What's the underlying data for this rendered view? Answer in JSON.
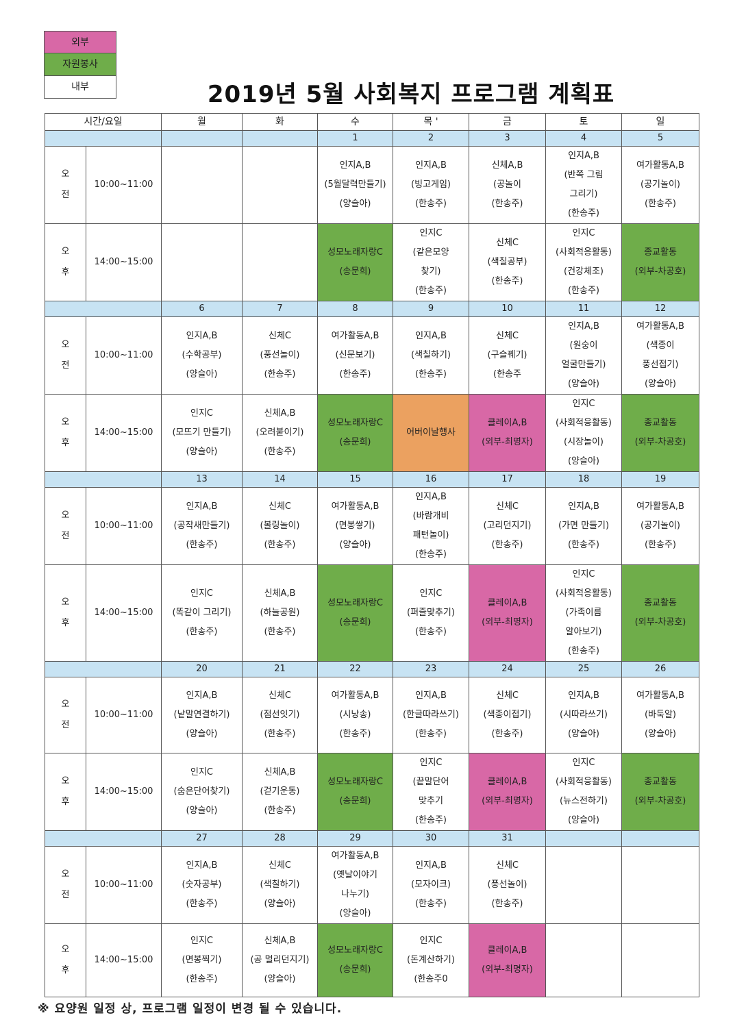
{
  "legend": [
    {
      "label": "외부",
      "color": "#d868a6"
    },
    {
      "label": "자원봉사",
      "color": "#6fad4a"
    },
    {
      "label": "내부",
      "color": "#ffffff"
    }
  ],
  "title": "2019년 5월 사회복지 프로그램 계획표",
  "header": [
    "시간/요일",
    "월",
    "화",
    "수",
    "목 '",
    "금",
    "토",
    "일"
  ],
  "ampm": {
    "am": [
      "오",
      "전"
    ],
    "pm": [
      "오",
      "후"
    ]
  },
  "times": {
    "am": "10:00~11:00",
    "pm": "14:00~15:00"
  },
  "colors": {
    "ext": "#d868a6",
    "vol": "#6fad4a",
    "spec": "#eba160",
    "date": "#c7e3f3"
  },
  "weeks": [
    {
      "dates": [
        "",
        "",
        "1",
        "2",
        "3",
        "4",
        "5"
      ],
      "am": [
        {
          "lines": [],
          "type": "int"
        },
        {
          "lines": [],
          "type": "int"
        },
        {
          "lines": [
            "인지A,B",
            "(5월달력만들기)",
            "(양슬아)"
          ],
          "type": "int"
        },
        {
          "lines": [
            "인지A,B",
            "(빙고게임)",
            "(한송주)"
          ],
          "type": "int"
        },
        {
          "lines": [
            "신체A,B",
            "(공놀이",
            "(한송주)"
          ],
          "type": "int"
        },
        {
          "lines": [
            "인지A,B",
            "(반쪽 그림",
            "그리기)",
            "(한송주)"
          ],
          "type": "int"
        },
        {
          "lines": [
            "여가활동A,B",
            "(공기놀이)",
            "(한송주)"
          ],
          "type": "int"
        }
      ],
      "pm": [
        {
          "lines": [],
          "type": "int"
        },
        {
          "lines": [],
          "type": "int"
        },
        {
          "lines": [
            "성모노래자랑C",
            "(송문희)"
          ],
          "type": "vol"
        },
        {
          "lines": [
            "인지C",
            "(같은모양",
            "찾기)",
            "(한송주)"
          ],
          "type": "int"
        },
        {
          "lines": [
            "신체C",
            "(색칠공부)",
            "(한송주)"
          ],
          "type": "int"
        },
        {
          "lines": [
            "인지C",
            "(사회적응활동)",
            "(건강체조)",
            "(한송주)"
          ],
          "type": "int"
        },
        {
          "lines": [
            "종교활동",
            "(외부-차공호)"
          ],
          "type": "vol"
        }
      ]
    },
    {
      "dates": [
        "6",
        "7",
        "8",
        "9",
        "10",
        "11",
        "12"
      ],
      "am": [
        {
          "lines": [
            "인지A,B",
            "(수학공부)",
            "(양슬아)"
          ],
          "type": "int"
        },
        {
          "lines": [
            "신체C",
            "(풍선놀이)",
            "(한송주)"
          ],
          "type": "int"
        },
        {
          "lines": [
            "여가활동A,B",
            "(신문보기)",
            "(한송주)"
          ],
          "type": "int"
        },
        {
          "lines": [
            "인지A,B",
            "(색칠하기)",
            "(한송주)"
          ],
          "type": "int"
        },
        {
          "lines": [
            "신체C",
            "(구슬꿰기)",
            "(한송주"
          ],
          "type": "int"
        },
        {
          "lines": [
            "인지A,B",
            "(원숭이",
            "얼굴만들기)",
            "(양슬아)"
          ],
          "type": "int"
        },
        {
          "lines": [
            "여가활동A,B",
            "(색종이",
            "풍선접기)",
            "(양슬아)"
          ],
          "type": "int"
        }
      ],
      "pm": [
        {
          "lines": [
            "인지C",
            "(모뜨기 만들기)",
            "(양슬아)"
          ],
          "type": "int"
        },
        {
          "lines": [
            "신체A,B",
            "(오려붙이기)",
            "(한송주)"
          ],
          "type": "int"
        },
        {
          "lines": [
            "성모노래자랑C",
            "(송문희)"
          ],
          "type": "vol"
        },
        {
          "lines": [
            "어버이날행사"
          ],
          "type": "spec"
        },
        {
          "lines": [
            "클레이A,B",
            "(외부-최명자)"
          ],
          "type": "ext"
        },
        {
          "lines": [
            "인지C",
            "(사회적응활동)",
            "(시장놀이)",
            "(양슬아)"
          ],
          "type": "int"
        },
        {
          "lines": [
            "종교활동",
            "(외부-차공호)"
          ],
          "type": "vol"
        }
      ]
    },
    {
      "dates": [
        "13",
        "14",
        "15",
        "16",
        "17",
        "18",
        "19"
      ],
      "am": [
        {
          "lines": [
            "인지A,B",
            "(공작새만들기)",
            "(한송주)"
          ],
          "type": "int"
        },
        {
          "lines": [
            "신체C",
            "(볼링놀이)",
            "(한송주)"
          ],
          "type": "int"
        },
        {
          "lines": [
            "여가활동A,B",
            "(면봉쌓기)",
            "(양슬아)"
          ],
          "type": "int"
        },
        {
          "lines": [
            "인지A,B",
            "(바람개비",
            "패턴놀이)",
            "(한송주)"
          ],
          "type": "int"
        },
        {
          "lines": [
            "신체C",
            "(고리던지기)",
            "(한송주)"
          ],
          "type": "int"
        },
        {
          "lines": [
            "인지A,B",
            "(가면 만들기)",
            "(한송주)"
          ],
          "type": "int"
        },
        {
          "lines": [
            "여가활동A,B",
            "(공기놀이)",
            "(한송주)"
          ],
          "type": "int"
        }
      ],
      "pm": [
        {
          "lines": [
            "인지C",
            "(똑같이 그리기)",
            "(한송주)"
          ],
          "type": "int"
        },
        {
          "lines": [
            "신체A,B",
            "(하늘공원)",
            "(한송주)"
          ],
          "type": "int"
        },
        {
          "lines": [
            "성모노래자랑C",
            "(송문희)"
          ],
          "type": "vol"
        },
        {
          "lines": [
            "인지C",
            "(퍼즐맞추기)",
            "(한송주)"
          ],
          "type": "int"
        },
        {
          "lines": [
            "클레이A,B",
            "(외부-최명자)"
          ],
          "type": "ext"
        },
        {
          "lines": [
            "인지C",
            "(사회적응활동)",
            "(가족이름",
            "알아보기)",
            "(한송주)"
          ],
          "type": "int"
        },
        {
          "lines": [
            "종교활동",
            "(외부-차공호)"
          ],
          "type": "vol"
        }
      ]
    },
    {
      "dates": [
        "20",
        "21",
        "22",
        "23",
        "24",
        "25",
        "26"
      ],
      "am": [
        {
          "lines": [
            "인지A,B",
            "(낱말연결하기)",
            "(양슬아)"
          ],
          "type": "int"
        },
        {
          "lines": [
            "신체C",
            "(점선잇기)",
            "(한송주)"
          ],
          "type": "int"
        },
        {
          "lines": [
            "여가활동A,B",
            "(시낭송)",
            "(한송주)"
          ],
          "type": "int"
        },
        {
          "lines": [
            "인지A,B",
            "(한글따라쓰기)",
            "(한송주)"
          ],
          "type": "int"
        },
        {
          "lines": [
            "신체C",
            "(색종이접기)",
            "(한송주)"
          ],
          "type": "int"
        },
        {
          "lines": [
            "인지A,B",
            "(시따라쓰기)",
            "(양슬아)"
          ],
          "type": "int"
        },
        {
          "lines": [
            "여가활동A,B",
            "(바둑알)",
            "(양슬아)"
          ],
          "type": "int"
        }
      ],
      "pm": [
        {
          "lines": [
            "인지C",
            "(숨은단어찾기)",
            "(양슬아)"
          ],
          "type": "int"
        },
        {
          "lines": [
            "신체A,B",
            "(걷기운동)",
            "(한송주)"
          ],
          "type": "int"
        },
        {
          "lines": [
            "성모노래자랑C",
            "(송문희)"
          ],
          "type": "vol"
        },
        {
          "lines": [
            "인지C",
            "(끝말단어",
            "맞추기",
            "(한송주)"
          ],
          "type": "int"
        },
        {
          "lines": [
            "클레이A,B",
            "(외부-최명자)"
          ],
          "type": "ext"
        },
        {
          "lines": [
            "인지C",
            "(사회적응활동)",
            "(뉴스전하기)",
            "(양슬아)"
          ],
          "type": "int"
        },
        {
          "lines": [
            "종교활동",
            "(외부-차공호)"
          ],
          "type": "vol"
        }
      ]
    },
    {
      "dates": [
        "27",
        "28",
        "29",
        "30",
        "31",
        "",
        ""
      ],
      "am": [
        {
          "lines": [
            "인지A,B",
            "(숫자공부)",
            "(한송주)"
          ],
          "type": "int"
        },
        {
          "lines": [
            "신체C",
            "(색칠하기)",
            "(양슬아)"
          ],
          "type": "int"
        },
        {
          "lines": [
            "여가활동A,B",
            "(옛날이야기",
            "나누기)",
            "(양슬아)"
          ],
          "type": "int"
        },
        {
          "lines": [
            "인지A,B",
            "(모자이크)",
            "(한송주)"
          ],
          "type": "int"
        },
        {
          "lines": [
            "신체C",
            "(풍선놀이)",
            "(한송주)"
          ],
          "type": "int"
        },
        {
          "lines": [],
          "type": "int"
        },
        {
          "lines": [],
          "type": "int"
        }
      ],
      "pm": [
        {
          "lines": [
            "인지C",
            "(면봉찍기)",
            "(한송주)"
          ],
          "type": "int"
        },
        {
          "lines": [
            "신체A,B",
            "(공 멀리던지기)",
            "(양슬아)"
          ],
          "type": "int"
        },
        {
          "lines": [
            "성모노래자랑C",
            "(송문희)"
          ],
          "type": "vol"
        },
        {
          "lines": [
            "인지C",
            "(돈계산하기)",
            "(한송주0"
          ],
          "type": "int"
        },
        {
          "lines": [
            "클레이A,B",
            "(외부-최명자)"
          ],
          "type": "ext"
        },
        {
          "lines": [],
          "type": "int"
        },
        {
          "lines": [],
          "type": "int"
        }
      ]
    }
  ],
  "note": "※ 요양원 일정 상, 프로그램 일정이 변경 될 수 있습니다."
}
